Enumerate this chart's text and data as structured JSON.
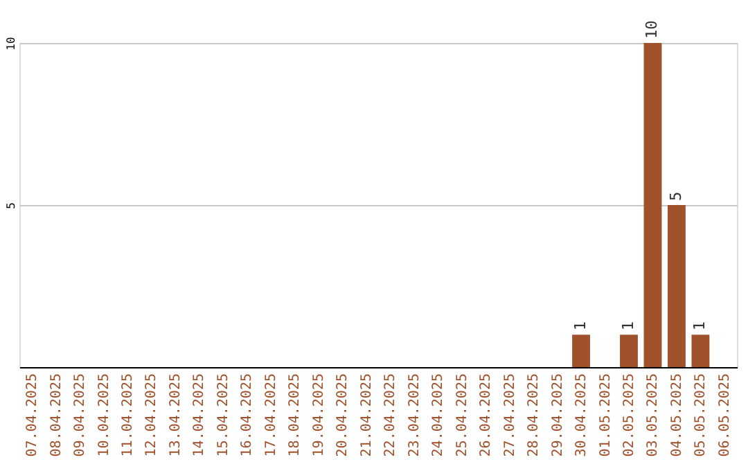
{
  "chart_data": {
    "type": "bar",
    "categories": [
      "07.04.2025",
      "08.04.2025",
      "09.04.2025",
      "10.04.2025",
      "11.04.2025",
      "12.04.2025",
      "13.04.2025",
      "14.04.2025",
      "15.04.2025",
      "16.04.2025",
      "17.04.2025",
      "18.04.2025",
      "19.04.2025",
      "20.04.2025",
      "21.04.2025",
      "22.04.2025",
      "23.04.2025",
      "24.04.2025",
      "25.04.2025",
      "26.04.2025",
      "27.04.2025",
      "28.04.2025",
      "29.04.2025",
      "30.04.2025",
      "01.05.2025",
      "02.05.2025",
      "03.05.2025",
      "04.05.2025",
      "05.05.2025",
      "06.05.2025"
    ],
    "values": [
      0,
      0,
      0,
      0,
      0,
      0,
      0,
      0,
      0,
      0,
      0,
      0,
      0,
      0,
      0,
      0,
      0,
      0,
      0,
      0,
      0,
      0,
      0,
      1,
      0,
      1,
      10,
      5,
      1,
      0
    ],
    "value_labels": [
      null,
      null,
      null,
      null,
      null,
      null,
      null,
      null,
      null,
      null,
      null,
      null,
      null,
      null,
      null,
      null,
      null,
      null,
      null,
      null,
      null,
      null,
      null,
      "1",
      null,
      "1",
      "10",
      "5",
      "1",
      null
    ],
    "color": "#a0522d",
    "ylim": [
      0,
      10
    ],
    "yticks": [
      5,
      10
    ],
    "grid": "y"
  }
}
